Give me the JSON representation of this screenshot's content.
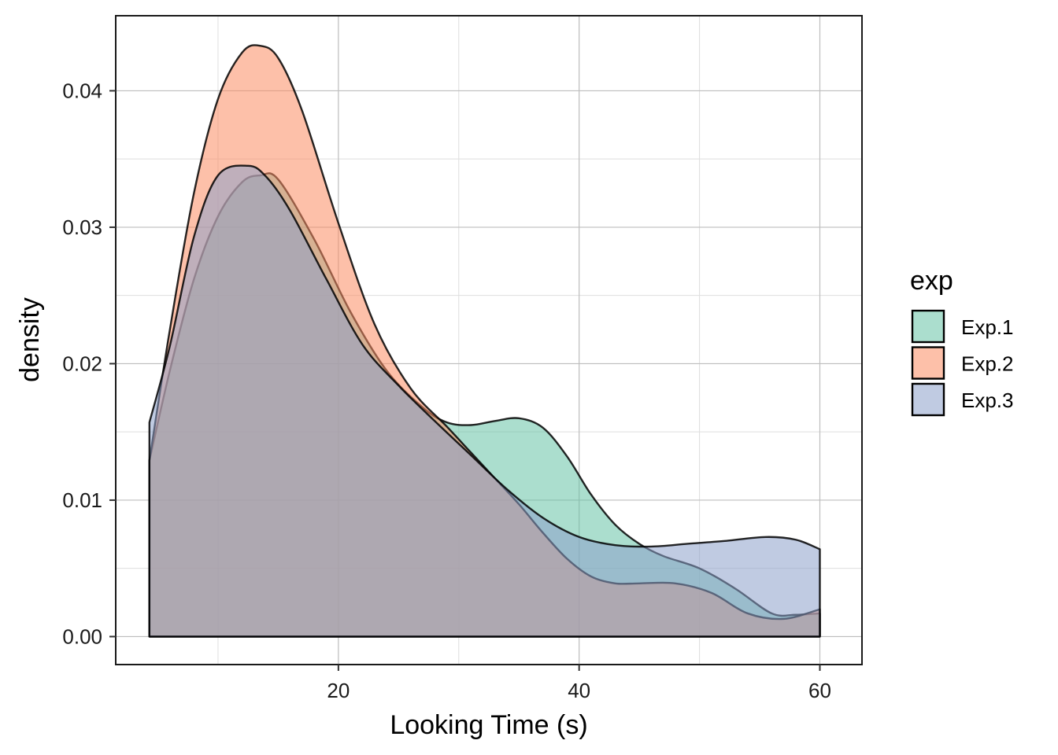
{
  "chart_data": {
    "type": "area",
    "title": "",
    "xlabel": "Looking Time (s)",
    "ylabel": "density",
    "xlim": [
      1.5,
      63.5
    ],
    "ylim": [
      -0.00205,
      0.0455
    ],
    "x_ticks": [
      20,
      40,
      60
    ],
    "x_tick_labels": [
      "20",
      "40",
      "60"
    ],
    "x_minor_ticks": [
      10,
      30,
      50
    ],
    "y_ticks": [
      0.0,
      0.01,
      0.02,
      0.03,
      0.04
    ],
    "y_tick_labels": [
      "0.00",
      "0.01",
      "0.02",
      "0.03",
      "0.04"
    ],
    "y_minor_ticks": [
      0.005,
      0.015,
      0.025,
      0.035
    ],
    "grid": true,
    "legend": {
      "title": "exp",
      "position": "right"
    },
    "series": [
      {
        "name": "Exp.1",
        "color": "#66c2a5",
        "x": [
          4.3,
          6,
          8,
          10,
          12,
          13.5,
          15,
          18,
          21,
          24,
          27,
          29,
          31,
          33,
          35,
          37,
          39,
          41,
          43,
          45,
          47,
          50,
          53,
          56,
          58,
          60
        ],
        "y": [
          0.0129,
          0.0195,
          0.0262,
          0.0308,
          0.0333,
          0.0338,
          0.0335,
          0.0291,
          0.0238,
          0.0195,
          0.0168,
          0.0157,
          0.0155,
          0.0158,
          0.016,
          0.0153,
          0.0132,
          0.0104,
          0.0082,
          0.0068,
          0.0059,
          0.005,
          0.0035,
          0.0017,
          0.0016,
          0.0017
        ]
      },
      {
        "name": "Exp.2",
        "color": "#fc8d62",
        "x": [
          4.3,
          6,
          8,
          10,
          12,
          13.5,
          15,
          17,
          20,
          23,
          26,
          29,
          31,
          33,
          35,
          37,
          39,
          41,
          43,
          45,
          48,
          51,
          54,
          57,
          60
        ],
        "y": [
          0.0129,
          0.0225,
          0.0325,
          0.0394,
          0.0428,
          0.0433,
          0.0424,
          0.0385,
          0.0303,
          0.0229,
          0.0182,
          0.0154,
          0.0135,
          0.0116,
          0.0097,
          0.0076,
          0.0057,
          0.0044,
          0.0039,
          0.0039,
          0.0039,
          0.0032,
          0.0017,
          0.0013,
          0.002
        ]
      },
      {
        "name": "Exp.3",
        "color": "#8da0cb",
        "x": [
          4.3,
          6,
          8,
          10,
          12.5,
          14,
          16,
          19,
          22,
          25,
          28,
          31,
          34,
          37,
          40,
          43,
          46,
          49,
          52,
          55.5,
          58,
          60
        ],
        "y": [
          0.0157,
          0.0213,
          0.0293,
          0.0338,
          0.0345,
          0.0337,
          0.0312,
          0.0262,
          0.0214,
          0.0184,
          0.0158,
          0.0133,
          0.0108,
          0.0087,
          0.0073,
          0.0067,
          0.0066,
          0.0068,
          0.007,
          0.0073,
          0.0071,
          0.0064
        ]
      }
    ]
  }
}
